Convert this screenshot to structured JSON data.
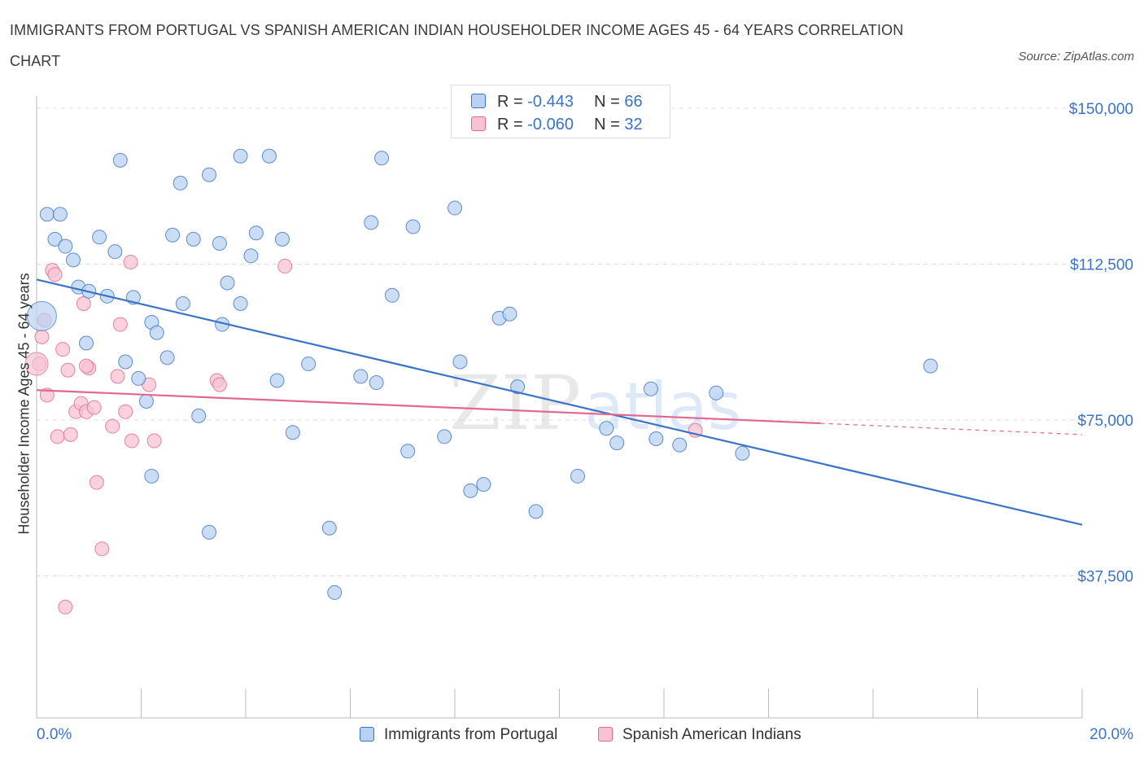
{
  "title": "IMMIGRANTS FROM PORTUGAL VS SPANISH AMERICAN INDIAN HOUSEHOLDER INCOME AGES 45 - 64 YEARS CORRELATION CHART",
  "source": "Source: ZipAtlas.com",
  "watermark": {
    "part1": "ZIP",
    "part2": "atlas"
  },
  "legend": {
    "rows": [
      {
        "r_label": "R = ",
        "r_value": "-0.443",
        "n_label": "N = ",
        "n_value": "66"
      },
      {
        "r_label": "R = ",
        "r_value": "-0.060",
        "n_label": "N = ",
        "n_value": "32"
      }
    ]
  },
  "chart_data": {
    "type": "scatter",
    "title": "IMMIGRANTS FROM PORTUGAL VS SPANISH AMERICAN INDIAN HOUSEHOLDER INCOME AGES 45 - 64 YEARS CORRELATION CHART",
    "xlabel": "",
    "ylabel": "Householder Income Ages 45 - 64 years",
    "xlim": [
      0,
      20
    ],
    "ylim": [
      0,
      150000
    ],
    "x_tick_labels": [
      "0.0%",
      "20.0%"
    ],
    "y_ticks": [
      37500,
      75000,
      112500,
      150000
    ],
    "y_tick_labels": [
      "$37,500",
      "$75,000",
      "$112,500",
      "$150,000"
    ],
    "colors": {
      "blue": "#3a73c8",
      "pink": "#e2688f",
      "blue_fill": "#b9d1f2",
      "pink_fill": "#f7c3d3",
      "grid": "#dddddd"
    },
    "series": [
      {
        "name": "Immigrants from Portugal",
        "color": "#3a73c8",
        "trend": {
          "x": [
            0,
            20
          ],
          "y": [
            108800,
            49800
          ]
        },
        "points": [
          {
            "x": 0.2,
            "y": 124500
          },
          {
            "x": 0.45,
            "y": 124500
          },
          {
            "x": 0.35,
            "y": 118500
          },
          {
            "x": 0.55,
            "y": 116800
          },
          {
            "x": 0.7,
            "y": 113500
          },
          {
            "x": 0.8,
            "y": 107000
          },
          {
            "x": 1.0,
            "y": 106000
          },
          {
            "x": 1.2,
            "y": 119000
          },
          {
            "x": 0.95,
            "y": 93500
          },
          {
            "x": 1.35,
            "y": 104800
          },
          {
            "x": 1.5,
            "y": 115500
          },
          {
            "x": 1.6,
            "y": 137500
          },
          {
            "x": 1.7,
            "y": 89000
          },
          {
            "x": 1.85,
            "y": 104500
          },
          {
            "x": 1.95,
            "y": 85000
          },
          {
            "x": 2.1,
            "y": 79500
          },
          {
            "x": 2.2,
            "y": 61500
          },
          {
            "x": 2.2,
            "y": 98500
          },
          {
            "x": 2.3,
            "y": 96000
          },
          {
            "x": 2.5,
            "y": 90000
          },
          {
            "x": 2.6,
            "y": 119500
          },
          {
            "x": 2.8,
            "y": 103000
          },
          {
            "x": 2.75,
            "y": 132000
          },
          {
            "x": 3.0,
            "y": 118500
          },
          {
            "x": 3.1,
            "y": 76000
          },
          {
            "x": 3.3,
            "y": 48000
          },
          {
            "x": 3.3,
            "y": 134000
          },
          {
            "x": 3.5,
            "y": 117500
          },
          {
            "x": 3.55,
            "y": 98000
          },
          {
            "x": 3.65,
            "y": 108000
          },
          {
            "x": 3.9,
            "y": 103000
          },
          {
            "x": 3.9,
            "y": 138500
          },
          {
            "x": 4.1,
            "y": 114500
          },
          {
            "x": 4.2,
            "y": 120000
          },
          {
            "x": 4.45,
            "y": 138500
          },
          {
            "x": 4.6,
            "y": 84500
          },
          {
            "x": 4.7,
            "y": 118500
          },
          {
            "x": 4.9,
            "y": 72000
          },
          {
            "x": 5.2,
            "y": 88500
          },
          {
            "x": 5.6,
            "y": 49000
          },
          {
            "x": 5.7,
            "y": 33500
          },
          {
            "x": 6.2,
            "y": 85500
          },
          {
            "x": 6.4,
            "y": 122500
          },
          {
            "x": 6.5,
            "y": 84000
          },
          {
            "x": 6.6,
            "y": 138000
          },
          {
            "x": 6.8,
            "y": 105000
          },
          {
            "x": 7.1,
            "y": 67500
          },
          {
            "x": 7.2,
            "y": 121500
          },
          {
            "x": 7.8,
            "y": 71000
          },
          {
            "x": 8.0,
            "y": 126000
          },
          {
            "x": 8.1,
            "y": 89000
          },
          {
            "x": 8.3,
            "y": 58000
          },
          {
            "x": 8.55,
            "y": 59500
          },
          {
            "x": 8.85,
            "y": 99500
          },
          {
            "x": 9.05,
            "y": 100500
          },
          {
            "x": 9.2,
            "y": 83000
          },
          {
            "x": 9.55,
            "y": 53000
          },
          {
            "x": 10.35,
            "y": 61500
          },
          {
            "x": 10.9,
            "y": 73000
          },
          {
            "x": 11.1,
            "y": 69500
          },
          {
            "x": 11.75,
            "y": 82500
          },
          {
            "x": 11.85,
            "y": 70500
          },
          {
            "x": 12.3,
            "y": 69000
          },
          {
            "x": 13.0,
            "y": 81500
          },
          {
            "x": 13.5,
            "y": 67000
          },
          {
            "x": 17.1,
            "y": 88000
          }
        ]
      },
      {
        "name": "Spanish American Indians",
        "color": "#e2688f",
        "trend": {
          "x": [
            0,
            15
          ],
          "y": [
            82200,
            74200
          ]
        },
        "trend_dashed": {
          "x": [
            15,
            20
          ],
          "y": [
            74200,
            71500
          ]
        },
        "points": [
          {
            "x": 0.05,
            "y": 88500
          },
          {
            "x": 0.1,
            "y": 95000
          },
          {
            "x": 0.15,
            "y": 99000
          },
          {
            "x": 0.2,
            "y": 81000
          },
          {
            "x": 0.3,
            "y": 111000
          },
          {
            "x": 0.35,
            "y": 110000
          },
          {
            "x": 0.4,
            "y": 71000
          },
          {
            "x": 0.5,
            "y": 92000
          },
          {
            "x": 0.6,
            "y": 87000
          },
          {
            "x": 0.65,
            "y": 71500
          },
          {
            "x": 0.75,
            "y": 77000
          },
          {
            "x": 0.85,
            "y": 79000
          },
          {
            "x": 0.9,
            "y": 103000
          },
          {
            "x": 0.95,
            "y": 77000
          },
          {
            "x": 1.0,
            "y": 87500
          },
          {
            "x": 1.1,
            "y": 78000
          },
          {
            "x": 1.15,
            "y": 60000
          },
          {
            "x": 1.25,
            "y": 44000
          },
          {
            "x": 1.45,
            "y": 73500
          },
          {
            "x": 1.6,
            "y": 98000
          },
          {
            "x": 1.55,
            "y": 85500
          },
          {
            "x": 1.7,
            "y": 77000
          },
          {
            "x": 1.8,
            "y": 113000
          },
          {
            "x": 1.82,
            "y": 70000
          },
          {
            "x": 2.15,
            "y": 83500
          },
          {
            "x": 2.25,
            "y": 70000
          },
          {
            "x": 3.45,
            "y": 84500
          },
          {
            "x": 3.5,
            "y": 83500
          },
          {
            "x": 4.75,
            "y": 112000
          },
          {
            "x": 12.6,
            "y": 72500
          },
          {
            "x": 0.55,
            "y": 30000
          },
          {
            "x": 0.95,
            "y": 88000
          }
        ]
      }
    ]
  }
}
